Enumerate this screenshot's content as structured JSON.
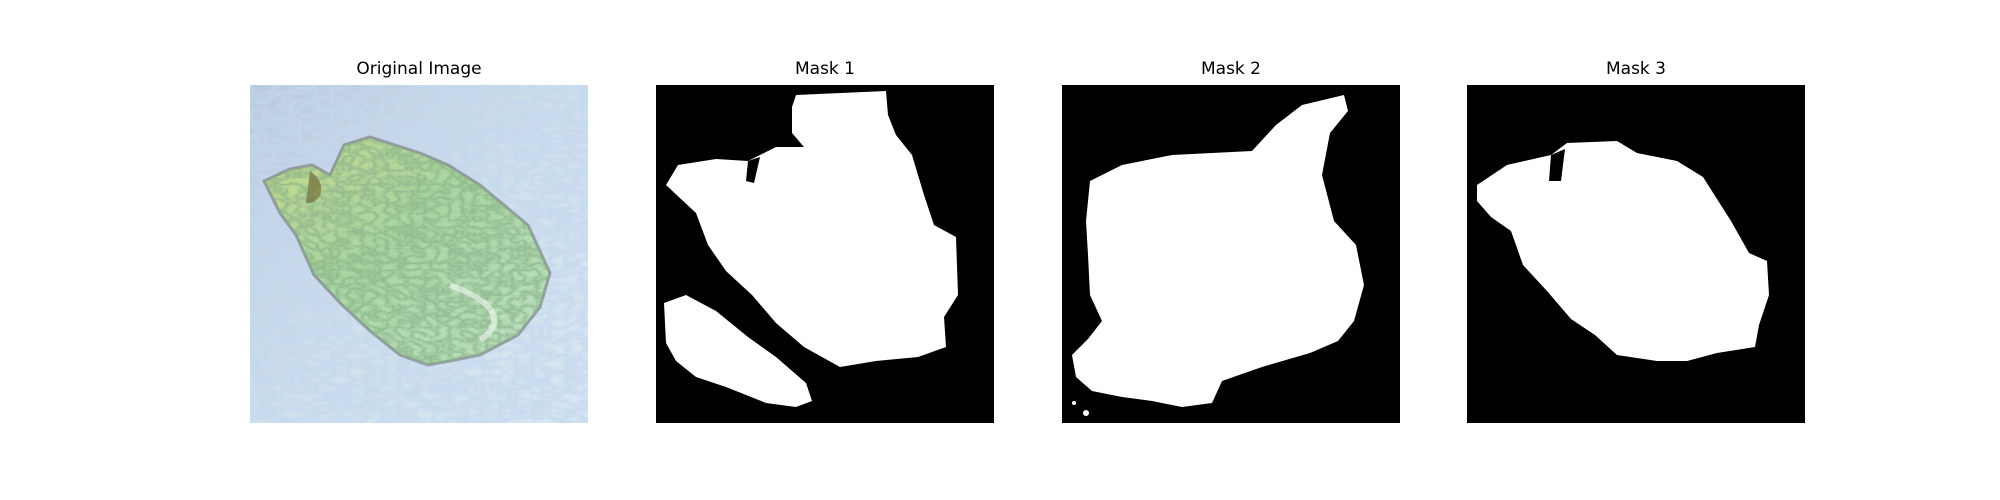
{
  "figure": {
    "panels": [
      {
        "title": "Original Image",
        "kind": "photo"
      },
      {
        "title": "Mask 1",
        "kind": "mask"
      },
      {
        "title": "Mask 2",
        "kind": "mask"
      },
      {
        "title": "Mask 3",
        "kind": "mask"
      }
    ],
    "colors": {
      "mask_background": "#000000",
      "mask_foreground": "#ffffff",
      "water": "#c9dbe8",
      "island": "#9fcf9a"
    }
  }
}
